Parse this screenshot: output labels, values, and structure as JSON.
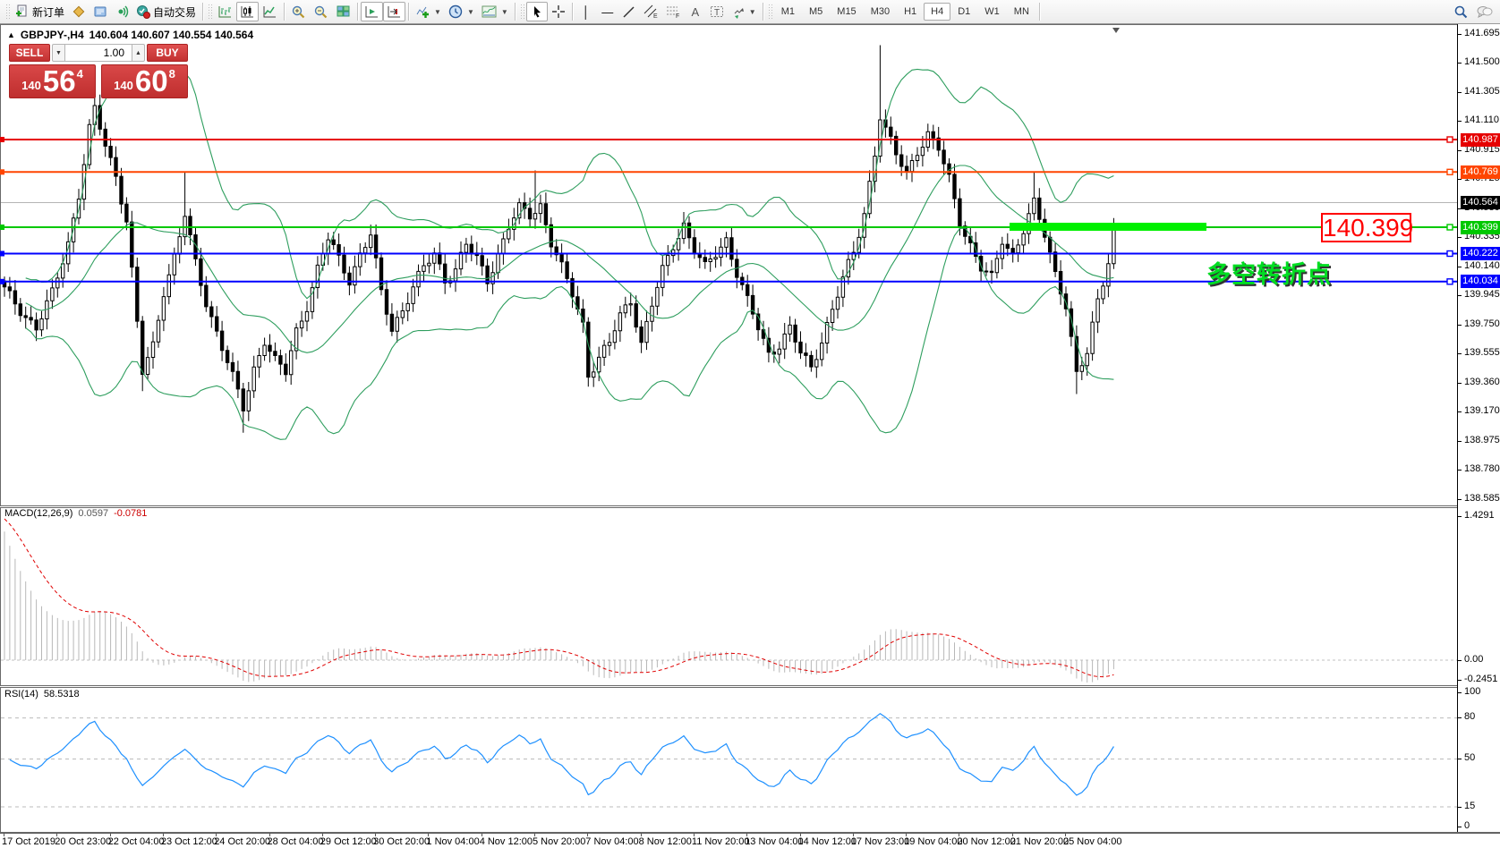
{
  "toolbar": {
    "new_order_label": "新订单",
    "autotrading_label": "自动交易",
    "timeframes": [
      "M1",
      "M5",
      "M15",
      "M30",
      "H1",
      "H4",
      "D1",
      "W1",
      "MN"
    ],
    "active_timeframe": "H4"
  },
  "chart": {
    "symbol_timeframe": "GBPJPY-,H4",
    "ohlc_text": "140.604 140.607 140.554 140.564",
    "collapse_arrow": "▲"
  },
  "one_click": {
    "sell_label": "SELL",
    "buy_label": "BUY",
    "volume": "1.00",
    "sell_prefix": "140",
    "sell_main": "56",
    "sell_sup": "4",
    "buy_prefix": "140",
    "buy_main": "60",
    "buy_sup": "8"
  },
  "annotations": {
    "callout": "140.399",
    "turning_point": "多空转折点"
  },
  "macd_panel": {
    "label": "MACD(12,26,9)",
    "value": "0.0597",
    "signal_value": "-0.0781"
  },
  "rsi_panel": {
    "label": "RSI(14)",
    "value": "58.5318"
  },
  "chart_data": {
    "type": "candlestick",
    "symbol": "GBPJPY-",
    "period": "H4",
    "price_axis_ticks": [
      "141.695",
      "141.500",
      "141.305",
      "141.110",
      "140.915",
      "140.725",
      "140.530",
      "140.335",
      "140.140",
      "139.945",
      "139.750",
      "139.555",
      "139.360",
      "139.170",
      "138.975",
      "138.780",
      "138.585"
    ],
    "price_axis_top_value": 141.695,
    "price_axis_step": 0.195,
    "current_price": "140.564",
    "horizontal_lines": [
      {
        "price": "140.987",
        "color": "#e60000"
      },
      {
        "price": "140.769",
        "color": "#ff4500"
      },
      {
        "price": "140.399",
        "color": "#00c800",
        "highlighted": true
      },
      {
        "price": "140.222",
        "color": "#0000ff"
      },
      {
        "price": "140.034",
        "color": "#0000ff"
      }
    ],
    "bars": 210,
    "close_keyframes": [
      [
        0,
        139.98
      ],
      [
        3,
        139.85
      ],
      [
        6,
        139.72
      ],
      [
        9,
        139.95
      ],
      [
        12,
        140.3
      ],
      [
        14,
        140.62
      ],
      [
        16,
        141.05
      ],
      [
        17,
        141.18
      ],
      [
        19,
        140.95
      ],
      [
        21,
        140.75
      ],
      [
        23,
        140.45
      ],
      [
        25,
        139.75
      ],
      [
        26,
        139.42
      ],
      [
        28,
        139.6
      ],
      [
        30,
        139.98
      ],
      [
        32,
        140.2
      ],
      [
        34,
        140.48
      ],
      [
        36,
        140.15
      ],
      [
        38,
        139.9
      ],
      [
        40,
        139.7
      ],
      [
        42,
        139.5
      ],
      [
        44,
        139.28
      ],
      [
        45,
        139.18
      ],
      [
        47,
        139.45
      ],
      [
        49,
        139.65
      ],
      [
        51,
        139.5
      ],
      [
        53,
        139.42
      ],
      [
        55,
        139.7
      ],
      [
        57,
        139.88
      ],
      [
        59,
        140.12
      ],
      [
        61,
        140.32
      ],
      [
        63,
        140.18
      ],
      [
        65,
        140.05
      ],
      [
        67,
        140.22
      ],
      [
        69,
        140.35
      ],
      [
        71,
        139.95
      ],
      [
        73,
        139.72
      ],
      [
        75,
        139.85
      ],
      [
        77,
        140.0
      ],
      [
        79,
        140.12
      ],
      [
        81,
        140.22
      ],
      [
        83,
        140.05
      ],
      [
        85,
        140.12
      ],
      [
        87,
        140.28
      ],
      [
        89,
        140.18
      ],
      [
        91,
        140.05
      ],
      [
        93,
        140.22
      ],
      [
        95,
        140.4
      ],
      [
        97,
        140.52
      ],
      [
        99,
        140.48
      ],
      [
        101,
        140.55
      ],
      [
        103,
        140.3
      ],
      [
        105,
        140.12
      ],
      [
        107,
        139.95
      ],
      [
        109,
        139.75
      ],
      [
        110,
        139.42
      ],
      [
        112,
        139.52
      ],
      [
        114,
        139.62
      ],
      [
        116,
        139.8
      ],
      [
        118,
        139.92
      ],
      [
        120,
        139.62
      ],
      [
        122,
        139.88
      ],
      [
        124,
        140.1
      ],
      [
        126,
        140.28
      ],
      [
        128,
        140.42
      ],
      [
        130,
        140.25
      ],
      [
        132,
        140.12
      ],
      [
        134,
        140.22
      ],
      [
        136,
        140.32
      ],
      [
        138,
        140.1
      ],
      [
        140,
        139.9
      ],
      [
        142,
        139.72
      ],
      [
        144,
        139.55
      ],
      [
        146,
        139.62
      ],
      [
        148,
        139.72
      ],
      [
        150,
        139.55
      ],
      [
        152,
        139.45
      ],
      [
        154,
        139.65
      ],
      [
        156,
        139.85
      ],
      [
        158,
        140.05
      ],
      [
        160,
        140.22
      ],
      [
        162,
        140.5
      ],
      [
        164,
        140.9
      ],
      [
        165,
        141.15
      ],
      [
        166,
        141.05
      ],
      [
        168,
        140.88
      ],
      [
        170,
        140.76
      ],
      [
        172,
        140.92
      ],
      [
        174,
        141.02
      ],
      [
        176,
        140.92
      ],
      [
        178,
        140.72
      ],
      [
        180,
        140.45
      ],
      [
        182,
        140.28
      ],
      [
        184,
        140.12
      ],
      [
        186,
        140.05
      ],
      [
        188,
        140.32
      ],
      [
        190,
        140.22
      ],
      [
        192,
        140.38
      ],
      [
        194,
        140.55
      ],
      [
        196,
        140.35
      ],
      [
        198,
        140.1
      ],
      [
        200,
        139.88
      ],
      [
        202,
        139.4
      ],
      [
        204,
        139.55
      ],
      [
        206,
        139.92
      ],
      [
        208,
        140.18
      ],
      [
        210,
        140.56
      ]
    ],
    "wick_high_overrides": {
      "34": 140.77,
      "100": 140.78,
      "165": 141.62,
      "194": 140.77
    },
    "wick_low_overrides": {
      "26": 139.3,
      "45": 139.02,
      "110": 139.33,
      "202": 139.28
    },
    "indicators": {
      "bollinger": {
        "period": 20,
        "deviation": 2,
        "color": "#2e9e5e"
      },
      "macd": {
        "params": "12,26,9",
        "value": 0.0597,
        "signal": -0.0781,
        "axis_labels": [
          "1.4291",
          "0.00",
          "-0.2451"
        ],
        "histogram_color": "#b8b8b8",
        "signal_color": "#e00000"
      },
      "rsi": {
        "params": "14",
        "value": 58.5318,
        "axis_labels": [
          "100",
          "80",
          "50",
          "15",
          "0"
        ],
        "levels": [
          80,
          50,
          15
        ],
        "color": "#1e90ff"
      }
    },
    "time_labels": [
      "17 Oct 2019",
      "20 Oct 23:00",
      "22 Oct 04:00",
      "23 Oct 12:00",
      "24 Oct 20:00",
      "28 Oct 04:00",
      "29 Oct 12:00",
      "30 Oct 20:00",
      "1 Nov 04:00",
      "4 Nov 12:00",
      "5 Nov 20:00",
      "7 Nov 04:00",
      "8 Nov 12:00",
      "11 Nov 20:00",
      "13 Nov 04:00",
      "14 Nov 12:00",
      "17 Nov 23:00",
      "19 Nov 04:00",
      "20 Nov 12:00",
      "21 Nov 20:00",
      "25 Nov 04:00"
    ]
  }
}
